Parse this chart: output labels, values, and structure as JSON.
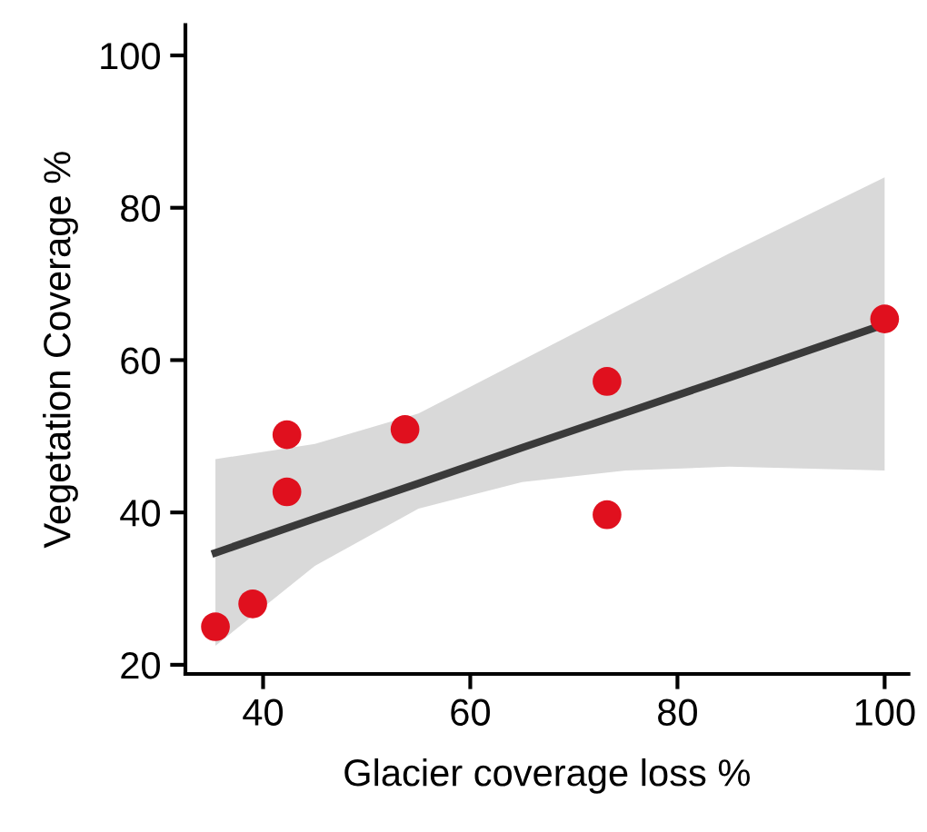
{
  "chart_data": {
    "type": "scatter",
    "xlabel": "Glacier coverage loss %",
    "ylabel": "Vegetation Coverage %",
    "xlim": [
      32.5,
      102.3
    ],
    "ylim": [
      18.8,
      104
    ],
    "xticks": [
      40,
      60,
      80,
      100
    ],
    "yticks": [
      20,
      40,
      60,
      80,
      100
    ],
    "grid": false,
    "series": [
      {
        "type": "line",
        "color": "#3a3a3a",
        "x": [
          35.4,
          45,
          55,
          65,
          75,
          85,
          100
        ],
        "values": [
          34.7,
          39.2,
          43.8,
          48.5,
          53.1,
          57.7,
          64.7
        ],
        "lower": [
          22.5,
          33,
          40.5,
          44,
          45.5,
          46,
          45.5
        ],
        "upper": [
          47,
          49,
          53,
          60,
          67,
          74,
          84
        ],
        "marker": "none"
      },
      {
        "color": "#e0101e",
        "marker": "circle",
        "x": [
          35.4,
          39,
          42.3,
          42.3,
          53.7,
          73.2,
          73.2,
          100
        ],
        "values": [
          25,
          28,
          50.2,
          42.7,
          50.9,
          57.2,
          39.7,
          65.4
        ]
      }
    ]
  }
}
